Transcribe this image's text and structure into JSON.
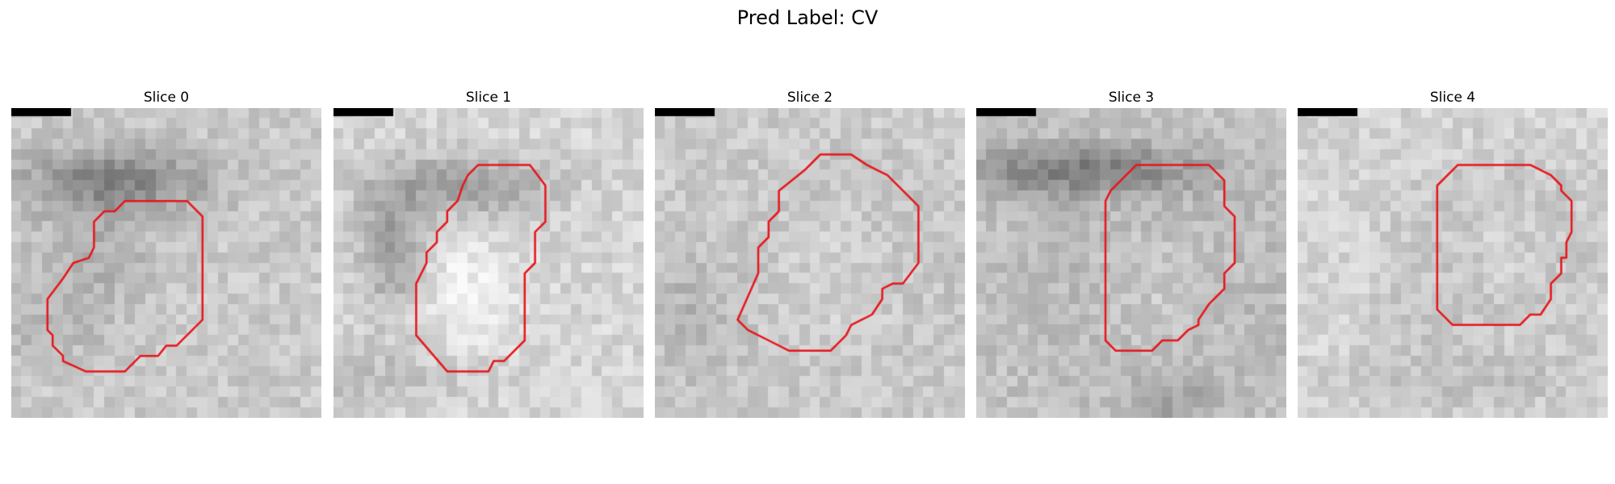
{
  "figure": {
    "title": "Pred Label: CV"
  },
  "colors": {
    "contour": "#e8141a",
    "scale_bar": "#000000"
  },
  "panels": [
    {
      "title": "Slice 0",
      "texture": {
        "base": 202,
        "seed": 11,
        "blobs": [
          [
            10.2,
            7.0,
            9.0,
            3.2,
            70
          ],
          [
            8.0,
            14.0,
            6.0,
            5.0,
            25
          ],
          [
            4.0,
            21.0,
            6.0,
            4.0,
            20
          ]
        ]
      },
      "contour": [
        [
          3.5,
          18.5
        ],
        [
          3.5,
          21.5
        ],
        [
          4,
          22
        ],
        [
          4,
          23
        ],
        [
          5,
          24
        ],
        [
          5,
          24.5
        ],
        [
          7.2,
          25.5
        ],
        [
          11,
          25.5
        ],
        [
          12.5,
          24
        ],
        [
          14.2,
          24
        ],
        [
          15,
          23
        ],
        [
          16,
          23
        ],
        [
          18.5,
          20.5
        ],
        [
          18.5,
          10.5
        ],
        [
          17,
          9
        ],
        [
          11,
          9
        ],
        [
          10,
          10
        ],
        [
          9,
          10
        ],
        [
          8,
          11
        ],
        [
          8,
          13.5
        ],
        [
          7.5,
          14.5
        ],
        [
          6,
          15
        ],
        [
          5,
          16.5
        ]
      ]
    },
    {
      "title": "Slice 1",
      "texture": {
        "base": 214,
        "seed": 23,
        "blobs": [
          [
            12.5,
            7.5,
            8.5,
            3.0,
            55
          ],
          [
            5.5,
            13.5,
            3.0,
            6.0,
            55
          ],
          [
            3.0,
            26.0,
            10.0,
            3.0,
            22
          ],
          [
            13.0,
            18.0,
            4.0,
            5.0,
            -30
          ]
        ]
      },
      "contour": [
        [
          8,
          22
        ],
        [
          11,
          25.5
        ],
        [
          15,
          25.5
        ],
        [
          15.5,
          24.5
        ],
        [
          16.5,
          24.5
        ],
        [
          18.5,
          22.5
        ],
        [
          18.5,
          16
        ],
        [
          19.5,
          15
        ],
        [
          19.5,
          12
        ],
        [
          20.5,
          11
        ],
        [
          20.5,
          7.5
        ],
        [
          19,
          5.5
        ],
        [
          14,
          5.5
        ],
        [
          13,
          6.5
        ],
        [
          12.5,
          7.5
        ],
        [
          12,
          9
        ],
        [
          11,
          10
        ],
        [
          11,
          11
        ],
        [
          10,
          12
        ],
        [
          10,
          13
        ],
        [
          9,
          14
        ],
        [
          9,
          15
        ],
        [
          8,
          17
        ]
      ]
    },
    {
      "title": "Slice 2",
      "texture": {
        "base": 208,
        "seed": 37,
        "blobs": [
          [
            17.0,
            17.0,
            15.0,
            13.0,
            30
          ],
          [
            17.0,
            17.0,
            9.5,
            9.0,
            -30
          ],
          [
            3.0,
            20.0,
            4.0,
            6.0,
            18
          ]
        ]
      },
      "contour": [
        [
          8,
          20.5
        ],
        [
          9,
          21.5
        ],
        [
          11,
          22.5
        ],
        [
          13,
          23.5
        ],
        [
          17,
          23.5
        ],
        [
          18.5,
          22
        ],
        [
          19,
          21
        ],
        [
          20,
          20.5
        ],
        [
          21,
          20
        ],
        [
          22,
          18.5
        ],
        [
          22,
          17.5
        ],
        [
          23,
          17
        ],
        [
          24,
          17
        ],
        [
          25.5,
          15
        ],
        [
          25.5,
          9.5
        ],
        [
          24,
          8
        ],
        [
          23,
          7
        ],
        [
          22.5,
          6.5
        ],
        [
          21.5,
          6
        ],
        [
          20.5,
          5.5
        ],
        [
          19,
          4.5
        ],
        [
          16,
          4.5
        ],
        [
          15.5,
          5
        ],
        [
          14.5,
          6
        ],
        [
          12,
          8
        ],
        [
          12,
          10
        ],
        [
          11,
          11
        ],
        [
          11,
          12.5
        ],
        [
          10,
          13.5
        ],
        [
          10,
          16
        ]
      ]
    },
    {
      "title": "Slice 3",
      "texture": {
        "base": 200,
        "seed": 53,
        "blobs": [
          [
            10.0,
            6.0,
            12.0,
            2.5,
            70
          ],
          [
            17.5,
            18.0,
            13.0,
            11.0,
            45
          ],
          [
            17.5,
            18.0,
            8.5,
            8.0,
            -45
          ],
          [
            19.0,
            29.0,
            4.0,
            3.0,
            30
          ]
        ]
      },
      "contour": [
        [
          12.5,
          9.5
        ],
        [
          12.5,
          22.5
        ],
        [
          13.5,
          23.5
        ],
        [
          17,
          23.5
        ],
        [
          18,
          22.5
        ],
        [
          19.5,
          22.5
        ],
        [
          20.5,
          21.5
        ],
        [
          21.5,
          21
        ],
        [
          21.5,
          20.5
        ],
        [
          22.5,
          19
        ],
        [
          24,
          17.5
        ],
        [
          24,
          16
        ],
        [
          25,
          15
        ],
        [
          25,
          10.5
        ],
        [
          24,
          9.5
        ],
        [
          24,
          7
        ],
        [
          23,
          6
        ],
        [
          22.5,
          5.5
        ],
        [
          15.5,
          5.5
        ],
        [
          14.5,
          6.5
        ],
        [
          13,
          8
        ],
        [
          12.5,
          9
        ]
      ]
    },
    {
      "title": "Slice 4",
      "texture": {
        "base": 213,
        "seed": 71,
        "blobs": [
          [
            20.0,
            13.5,
            9.0,
            8.0,
            30
          ],
          [
            20.0,
            13.5,
            5.0,
            5.0,
            -25
          ],
          [
            17.0,
            26.5,
            13.0,
            3.0,
            20
          ],
          [
            11.0,
            21.0,
            5.0,
            3.0,
            12
          ]
        ]
      },
      "contour": [
        [
          13.5,
          7.5
        ],
        [
          13.5,
          19.5
        ],
        [
          15,
          21
        ],
        [
          21.5,
          21
        ],
        [
          22.5,
          20
        ],
        [
          23.5,
          20
        ],
        [
          24.5,
          18.5
        ],
        [
          24.5,
          17
        ],
        [
          25.5,
          16
        ],
        [
          25.5,
          14.5
        ],
        [
          26,
          14.5
        ],
        [
          26,
          13
        ],
        [
          26.5,
          12
        ],
        [
          26.5,
          9
        ],
        [
          25.5,
          8
        ],
        [
          25.5,
          7.5
        ],
        [
          24.5,
          6.5
        ],
        [
          22.5,
          5.5
        ],
        [
          15.5,
          5.5
        ]
      ]
    }
  ]
}
